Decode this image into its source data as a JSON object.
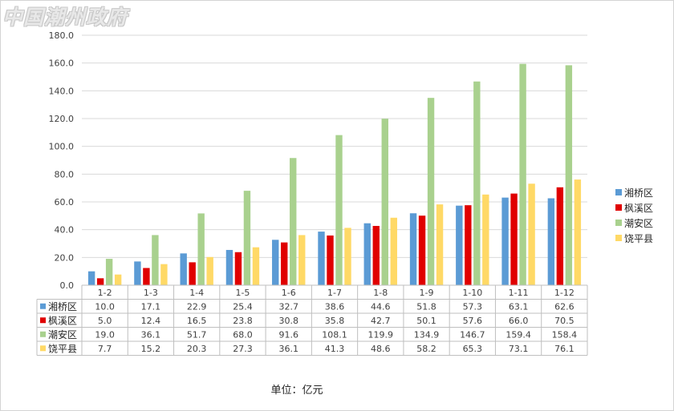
{
  "watermark": "中国潮州政府",
  "unit_caption": "单位：亿元",
  "chart_data": {
    "type": "bar",
    "title": "",
    "xlabel": "",
    "ylabel": "",
    "ylim": [
      0,
      180
    ],
    "yticks": [
      "0.0",
      "20.0",
      "40.0",
      "60.0",
      "80.0",
      "100.0",
      "120.0",
      "140.0",
      "160.0",
      "180.0"
    ],
    "grid": true,
    "legend_position": "right",
    "data_table": true,
    "categories": [
      "1-2",
      "1-3",
      "1-4",
      "1-5",
      "1-6",
      "1-7",
      "1-8",
      "1-9",
      "1-10",
      "1-11",
      "1-12"
    ],
    "series": [
      {
        "name": "湘桥区",
        "color": "#5b9bd5",
        "values": [
          10.0,
          17.1,
          22.9,
          25.4,
          32.7,
          38.6,
          44.6,
          51.8,
          57.3,
          63.1,
          62.6
        ]
      },
      {
        "name": "枫溪区",
        "color": "#e00000",
        "values": [
          5.0,
          12.4,
          16.5,
          23.8,
          30.8,
          35.8,
          42.7,
          50.1,
          57.6,
          66.0,
          70.5
        ]
      },
      {
        "name": "潮安区",
        "color": "#a9d18e",
        "values": [
          19.0,
          36.1,
          51.7,
          68.0,
          91.6,
          108.1,
          119.9,
          134.9,
          146.7,
          159.4,
          158.4
        ]
      },
      {
        "name": "饶平县",
        "color": "#ffd966",
        "values": [
          7.7,
          15.2,
          20.3,
          27.3,
          36.1,
          41.3,
          48.6,
          58.2,
          65.3,
          73.1,
          76.1
        ]
      }
    ]
  }
}
